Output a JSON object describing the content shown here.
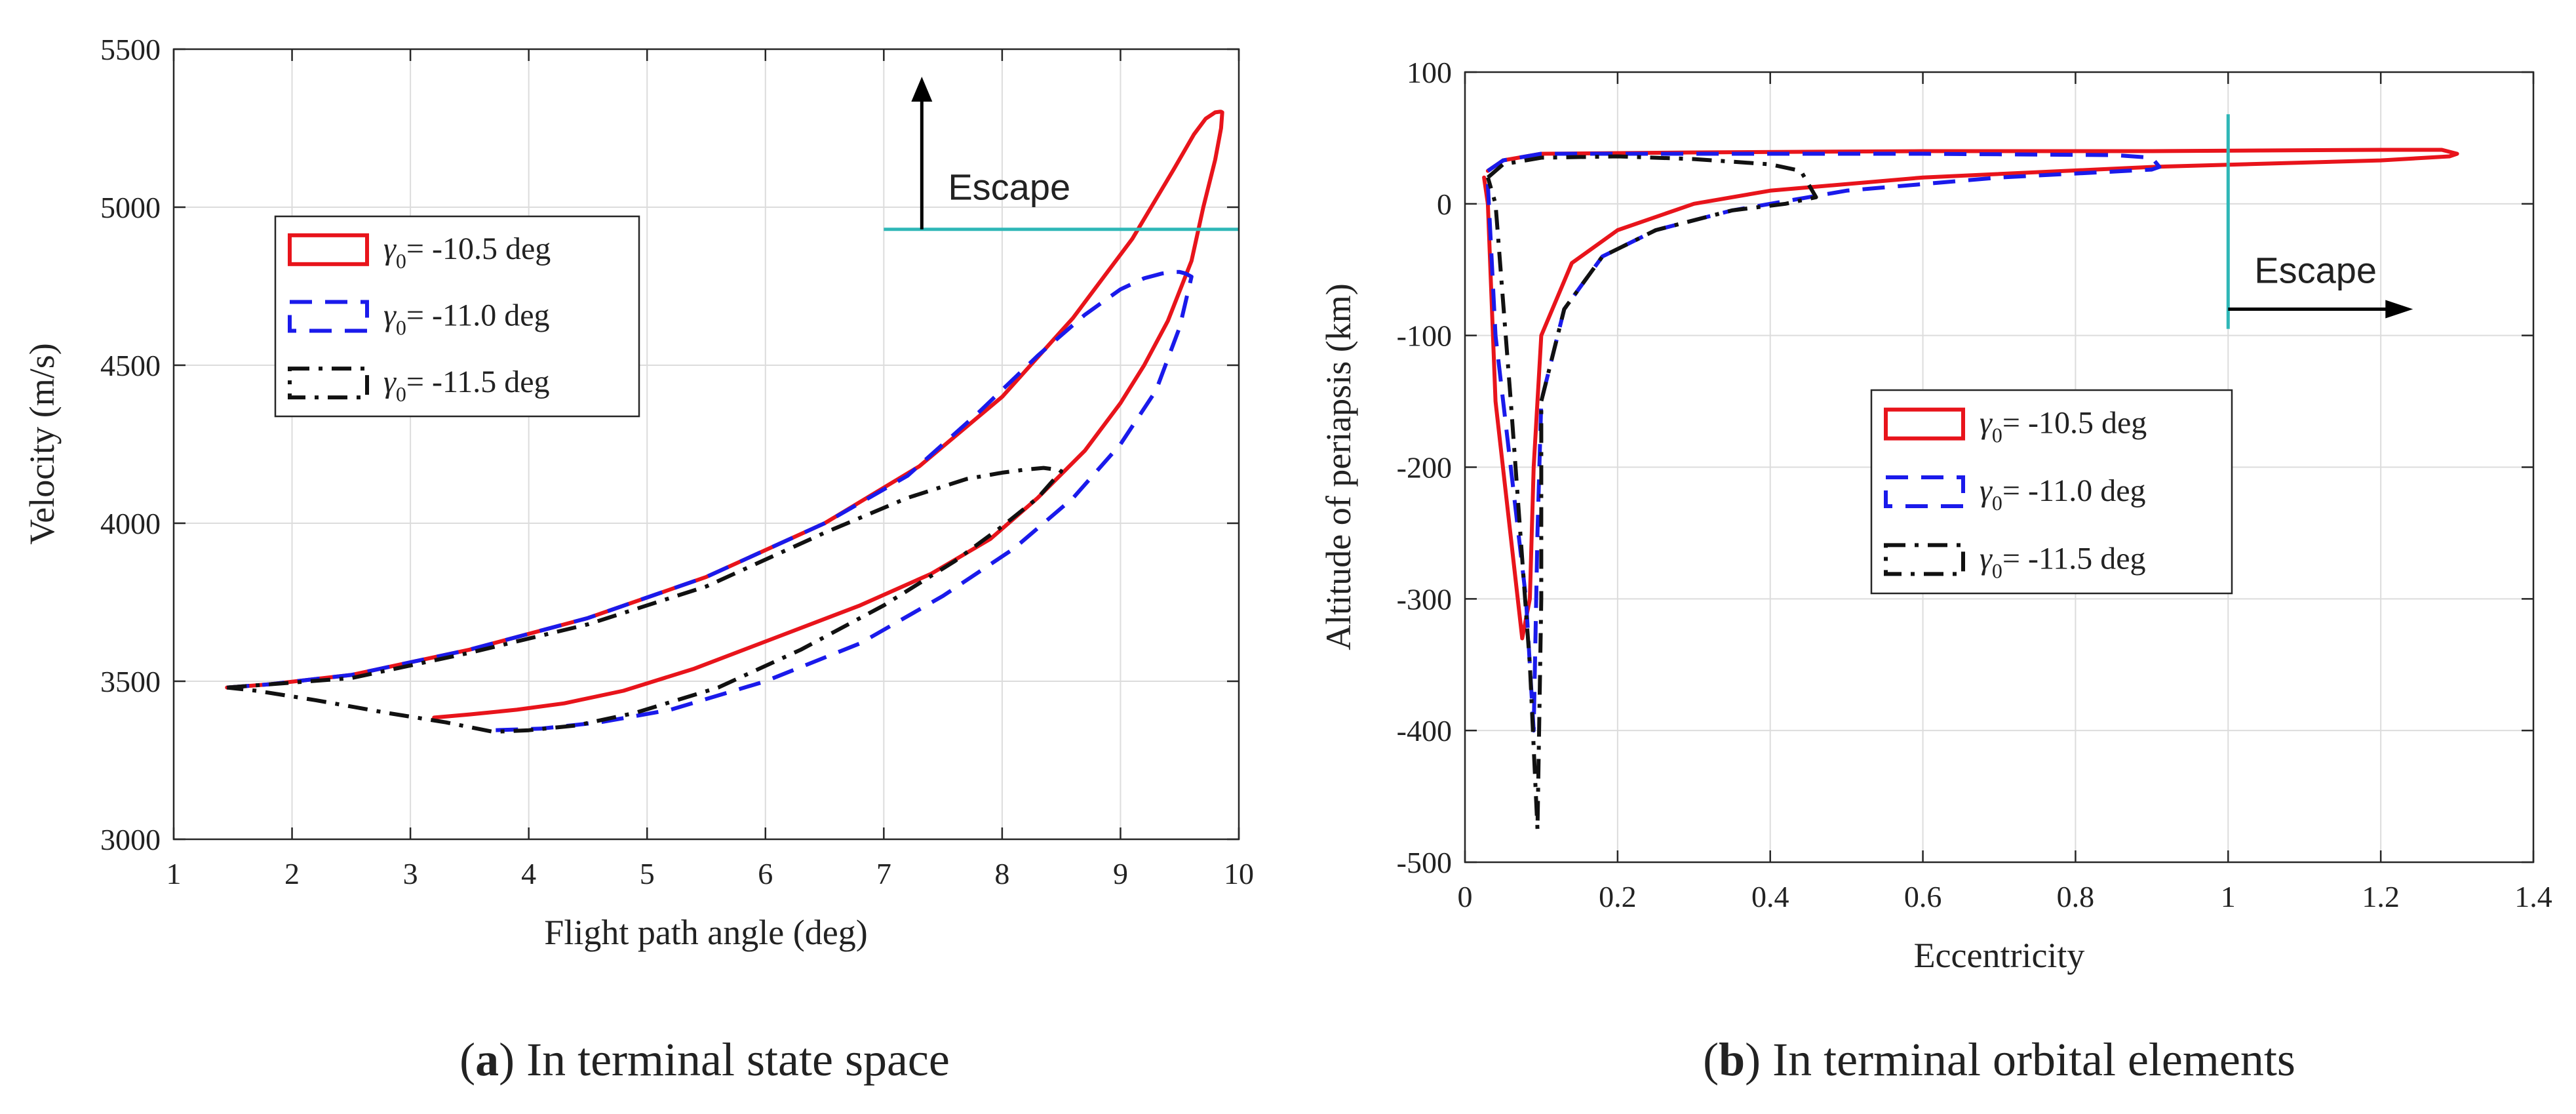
{
  "colors": {
    "red": "#e8141b",
    "blue": "#1a1aeb",
    "black": "#111111",
    "cyan": "#2fb7b7"
  },
  "chart_data": [
    {
      "id": "a",
      "type": "line",
      "caption_label": "a",
      "caption_text": ") In terminal state space",
      "xlabel": "Flight path angle (deg)",
      "ylabel": "Velocity (m/s)",
      "xlim": [
        1,
        10
      ],
      "ylim": [
        3000,
        5500
      ],
      "xticks": [
        1,
        2,
        3,
        4,
        5,
        6,
        7,
        8,
        9,
        10
      ],
      "yticks": [
        3000,
        3500,
        4000,
        4500,
        5000,
        5500
      ],
      "grid": true,
      "legend_position": "upper-left",
      "legend_sym": "γ",
      "legend_sub": "0",
      "annotation": {
        "text": "Escape",
        "threshold_y": 4930,
        "threshold_x_from": 7,
        "direction": "up"
      },
      "series": [
        {
          "name": "= -10.5 deg",
          "style": "solid",
          "color": "red",
          "x": [
            1.45,
            1.8,
            2.5,
            3.5,
            4.5,
            5.5,
            6.5,
            7.3,
            8.0,
            8.6,
            9.1,
            9.45,
            9.62,
            9.72,
            9.8,
            9.84,
            9.85,
            9.86,
            9.85,
            9.8,
            9.7,
            9.6,
            9.4,
            9.2,
            9.0,
            8.7,
            8.3,
            7.9,
            7.4,
            6.8,
            6.1,
            5.4,
            4.8,
            4.3,
            3.9,
            3.5,
            3.2
          ],
          "y": [
            3480,
            3490,
            3520,
            3600,
            3700,
            3830,
            4000,
            4180,
            4400,
            4650,
            4900,
            5120,
            5230,
            5280,
            5300,
            5302,
            5302,
            5300,
            5250,
            5150,
            5000,
            4830,
            4640,
            4500,
            4380,
            4230,
            4080,
            3950,
            3840,
            3740,
            3640,
            3540,
            3470,
            3430,
            3410,
            3395,
            3385
          ]
        },
        {
          "name": "= -11.0 deg",
          "style": "dashed",
          "color": "blue",
          "x": [
            1.45,
            1.8,
            2.5,
            3.5,
            4.5,
            5.5,
            6.5,
            7.2,
            7.8,
            8.3,
            8.7,
            9.0,
            9.2,
            9.35,
            9.45,
            9.5,
            9.55,
            9.6,
            9.5,
            9.3,
            9.0,
            8.6,
            8.1,
            7.5,
            6.8,
            6.0,
            5.2,
            4.6,
            4.1,
            3.7
          ],
          "y": [
            3480,
            3490,
            3520,
            3600,
            3700,
            3830,
            4000,
            4150,
            4350,
            4530,
            4660,
            4740,
            4775,
            4790,
            4795,
            4795,
            4790,
            4780,
            4620,
            4420,
            4250,
            4080,
            3920,
            3770,
            3620,
            3500,
            3410,
            3370,
            3350,
            3345
          ]
        },
        {
          "name": "= -11.5 deg",
          "style": "dashdot",
          "color": "black",
          "x": [
            1.45,
            1.8,
            2.5,
            3.5,
            4.5,
            5.5,
            6.5,
            7.2,
            7.7,
            8.0,
            8.2,
            8.35,
            8.45,
            8.5,
            8.3,
            8.0,
            7.6,
            7.0,
            6.3,
            5.6,
            4.9,
            4.4,
            4.0,
            3.7,
            3.3,
            2.8,
            2.2,
            1.7,
            1.45
          ],
          "y": [
            3480,
            3490,
            3510,
            3590,
            3680,
            3800,
            3970,
            4080,
            4140,
            4160,
            4170,
            4175,
            4170,
            4165,
            4080,
            3990,
            3880,
            3740,
            3600,
            3480,
            3400,
            3360,
            3345,
            3340,
            3370,
            3400,
            3440,
            3470,
            3480
          ]
        }
      ]
    },
    {
      "id": "b",
      "type": "line",
      "caption_label": "b",
      "caption_text": ") In terminal orbital elements",
      "xlabel": "Eccentricity",
      "ylabel": "Altitude of periapsis (km)",
      "xlim": [
        0,
        1.4
      ],
      "ylim": [
        -500,
        100
      ],
      "xticks": [
        0,
        0.2,
        0.4,
        0.6,
        0.8,
        1,
        1.2,
        1.4
      ],
      "yticks": [
        -500,
        -400,
        -300,
        -200,
        -100,
        0,
        100
      ],
      "grid": true,
      "legend_position": "center-right",
      "legend_sym": "γ",
      "legend_sub": "0",
      "annotation": {
        "text": "Escape",
        "threshold_x": 1,
        "threshold_y_from": -95,
        "threshold_y_to": 68,
        "direction": "right"
      },
      "series": [
        {
          "name": "= -10.5 deg",
          "style": "solid",
          "color": "red",
          "x": [
            0.03,
            0.05,
            0.1,
            0.3,
            0.6,
            0.9,
            1.2,
            1.28,
            1.3,
            1.29,
            1.2,
            0.9,
            0.6,
            0.4,
            0.3,
            0.2,
            0.14,
            0.1,
            0.09,
            0.085,
            0.075,
            0.04,
            0.03,
            0.025
          ],
          "y": [
            25,
            33,
            38,
            39,
            40,
            40,
            41,
            41,
            38,
            36,
            33,
            28,
            20,
            10,
            0,
            -20,
            -45,
            -100,
            -200,
            -300,
            -330,
            -150,
            0,
            20
          ]
        },
        {
          "name": "= -11.0 deg",
          "style": "dashed",
          "color": "blue",
          "x": [
            0.03,
            0.05,
            0.1,
            0.3,
            0.6,
            0.85,
            0.9,
            0.91,
            0.9,
            0.7,
            0.5,
            0.35,
            0.25,
            0.18,
            0.13,
            0.1,
            0.095,
            0.09,
            0.08,
            0.04,
            0.03
          ],
          "y": [
            25,
            33,
            38,
            38,
            38,
            37,
            35,
            28,
            26,
            20,
            10,
            -5,
            -20,
            -40,
            -80,
            -150,
            -250,
            -400,
            -300,
            -100,
            15
          ]
        },
        {
          "name": "= -11.5 deg",
          "style": "dashdot",
          "color": "black",
          "x": [
            0.03,
            0.05,
            0.1,
            0.2,
            0.3,
            0.4,
            0.44,
            0.46,
            0.42,
            0.35,
            0.25,
            0.18,
            0.13,
            0.1,
            0.1,
            0.095,
            0.085,
            0.06,
            0.04,
            0.03
          ],
          "y": [
            20,
            30,
            35,
            36,
            34,
            30,
            25,
            5,
            0,
            -5,
            -20,
            -40,
            -80,
            -150,
            -300,
            -475,
            -350,
            -150,
            0,
            20
          ]
        }
      ]
    }
  ]
}
